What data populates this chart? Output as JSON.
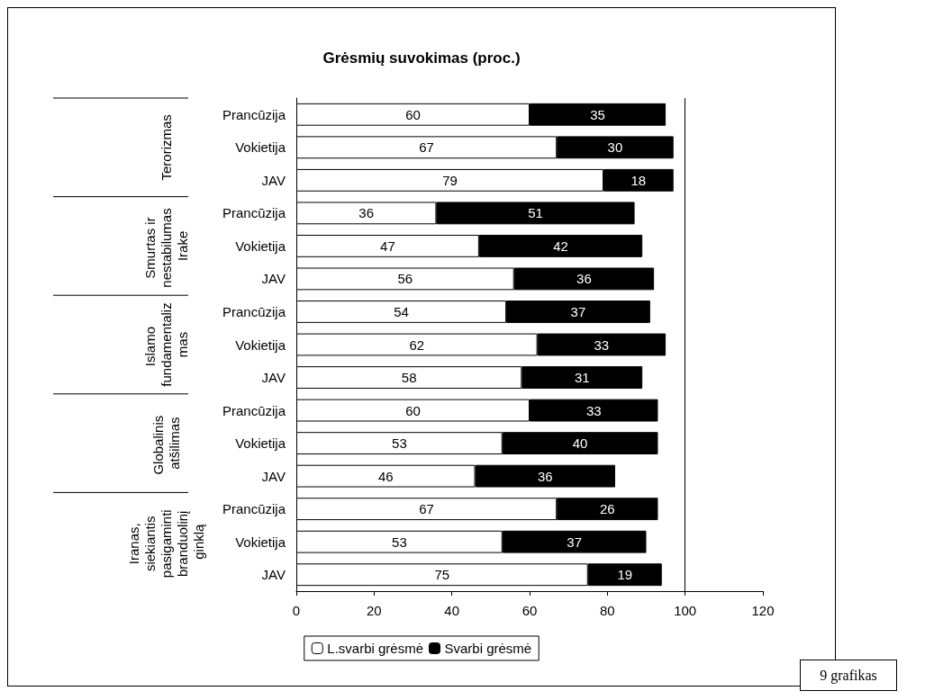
{
  "chart_data": {
    "type": "bar",
    "orientation": "horizontal",
    "stacked": true,
    "title": "Grėsmių suvokimas (proc.)",
    "categories": [
      "Prancūzija",
      "Vokietija",
      "JAV",
      "Prancūzija",
      "Vokietija",
      "JAV",
      "Prancūzija",
      "Vokietija",
      "JAV",
      "Prancūzija",
      "Vokietija",
      "JAV",
      "Prancūzija",
      "Vokietija",
      "JAV"
    ],
    "series": [
      {
        "name": "L.svarbi grėsmė",
        "color": "#ffffff",
        "values": [
          60,
          67,
          79,
          36,
          47,
          56,
          54,
          62,
          58,
          60,
          53,
          46,
          67,
          53,
          75
        ]
      },
      {
        "name": "Svarbi grėsmė",
        "color": "#000000",
        "values": [
          35,
          30,
          18,
          51,
          42,
          36,
          37,
          33,
          31,
          33,
          40,
          36,
          26,
          37,
          19
        ]
      }
    ],
    "xlim": [
      0,
      120
    ],
    "xticks": [
      0,
      20,
      40,
      60,
      80,
      100,
      120
    ],
    "ref_lines": [
      {
        "axis": "x",
        "value": 100
      }
    ],
    "data_labels": true,
    "grid": false,
    "legend": "bottom",
    "annotations": [
      "Terorizmas",
      "Smurtas ir nestabilumas Irake",
      "Islamo fundamentalizmas",
      "Globalinis atšilimas",
      "Iranas, siekiantis pasigaminti branduolinį ginklą",
      "9 grafikas"
    ]
  }
}
